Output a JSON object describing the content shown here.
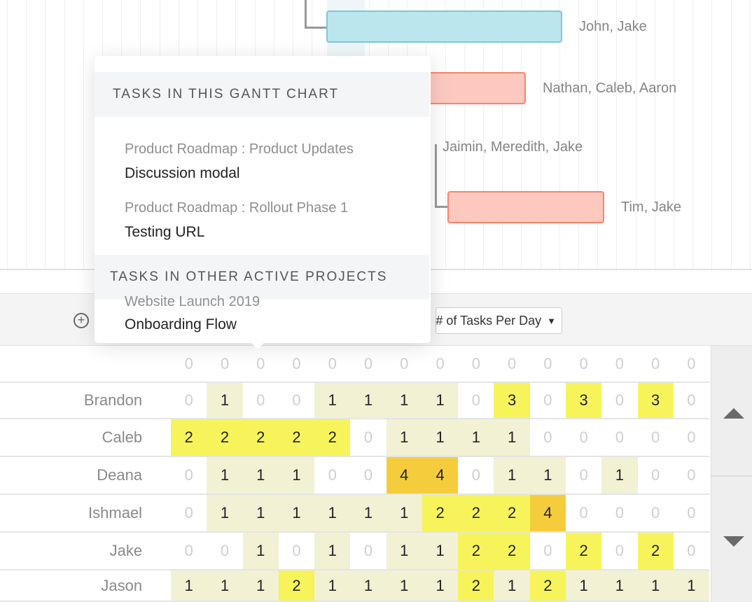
{
  "gantt": {
    "bars": [
      {
        "color": "cyan",
        "assignees": "John, Jake"
      },
      {
        "color": "salmon",
        "assignees": "Nathan, Caleb, Aaron"
      },
      {
        "color": "none",
        "assignees": "Jaimin, Meredith, Jake"
      },
      {
        "color": "salmon",
        "assignees": "Tim, Jake"
      }
    ]
  },
  "toolbar": {
    "add_icon": "plus-circle-icon",
    "dropdown_label": "# of Tasks Per Day",
    "dropdown_icon": "caret-down-icon"
  },
  "workload": {
    "colors": {
      "one": "#f2f1d4",
      "two_three": "#f6f45a",
      "four": "#f5cd3c"
    },
    "rows": [
      {
        "name": "",
        "values": [
          0,
          0,
          0,
          0,
          0,
          0,
          0,
          0,
          0,
          0,
          0,
          0,
          0,
          0,
          0
        ]
      },
      {
        "name": "Brandon",
        "values": [
          0,
          1,
          0,
          0,
          1,
          1,
          1,
          1,
          0,
          3,
          0,
          3,
          0,
          3,
          0
        ]
      },
      {
        "name": "Caleb",
        "values": [
          2,
          2,
          2,
          2,
          2,
          0,
          1,
          1,
          1,
          1,
          0,
          0,
          0,
          0,
          0
        ]
      },
      {
        "name": "Deana",
        "values": [
          0,
          1,
          1,
          1,
          0,
          0,
          4,
          4,
          0,
          1,
          1,
          0,
          1,
          0,
          0
        ]
      },
      {
        "name": "Ishmael",
        "values": [
          0,
          1,
          1,
          1,
          1,
          1,
          1,
          2,
          2,
          2,
          4,
          0,
          0,
          0,
          0
        ]
      },
      {
        "name": "Jake",
        "values": [
          0,
          0,
          1,
          0,
          1,
          0,
          1,
          1,
          2,
          2,
          0,
          2,
          0,
          2,
          0
        ]
      },
      {
        "name": "Jason",
        "values": [
          1,
          1,
          1,
          2,
          1,
          1,
          1,
          1,
          2,
          1,
          2,
          1,
          1,
          1,
          1
        ]
      }
    ]
  },
  "popup": {
    "section1_title": "TASKS IN THIS GANTT CHART",
    "section1_items": [
      {
        "project": "Product Roadmap : Product Updates",
        "task": "Discussion modal"
      },
      {
        "project": "Product Roadmap : Rollout Phase 1",
        "task": "Testing URL"
      }
    ],
    "section2_title": "TASKS IN OTHER ACTIVE PROJECTS",
    "section2_items": [
      {
        "project": "Website Launch 2019",
        "task": "Onboarding Flow"
      }
    ]
  }
}
